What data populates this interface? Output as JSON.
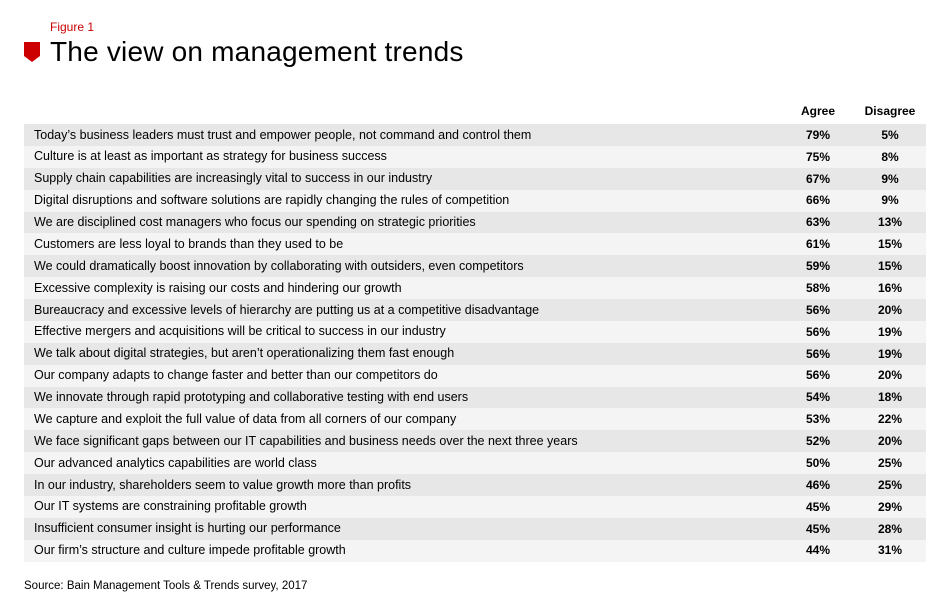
{
  "figure_label": "Figure 1",
  "title": "The view on management trends",
  "columns": {
    "agree": "Agree",
    "disagree": "Disagree"
  },
  "source": "Source: Bain Management Tools & Trends survey, 2017",
  "colors": {
    "accent": "#cc0000",
    "row_even": "#e7e7e7",
    "row_odd": "#f4f4f4",
    "text": "#000000",
    "background": "#ffffff"
  },
  "typography": {
    "title_fontsize_pt": 21,
    "title_weight": 300,
    "body_fontsize_pt": 9.5,
    "header_weight": 700
  },
  "table": {
    "type": "table",
    "column_widths_pct": [
      80,
      10,
      10
    ],
    "rows": [
      {
        "statement": "Today’s business leaders must trust and empower people, not command and control them",
        "agree": "79%",
        "disagree": "5%"
      },
      {
        "statement": "Culture is at least as important as strategy for business success",
        "agree": "75%",
        "disagree": "8%"
      },
      {
        "statement": "Supply chain capabilities are increasingly vital to success in our industry",
        "agree": "67%",
        "disagree": "9%"
      },
      {
        "statement": "Digital disruptions and software solutions are rapidly changing the rules of competition",
        "agree": "66%",
        "disagree": "9%"
      },
      {
        "statement": "We are disciplined cost managers who focus our spending on strategic priorities",
        "agree": "63%",
        "disagree": "13%"
      },
      {
        "statement": "Customers are less loyal to brands than they used to be",
        "agree": "61%",
        "disagree": "15%"
      },
      {
        "statement": "We could dramatically boost innovation by collaborating with outsiders, even competitors",
        "agree": "59%",
        "disagree": "15%"
      },
      {
        "statement": "Excessive complexity is raising our costs and hindering our growth",
        "agree": "58%",
        "disagree": "16%"
      },
      {
        "statement": "Bureaucracy and excessive levels of hierarchy are putting us at a competitive disadvantage",
        "agree": "56%",
        "disagree": "20%"
      },
      {
        "statement": "Effective mergers and acquisitions will be critical to success in our industry",
        "agree": "56%",
        "disagree": "19%"
      },
      {
        "statement": "We talk about digital strategies, but aren’t operationalizing them fast enough",
        "agree": "56%",
        "disagree": "19%"
      },
      {
        "statement": "Our company adapts to change faster and better than our competitors do",
        "agree": "56%",
        "disagree": "20%"
      },
      {
        "statement": "We innovate through rapid prototyping and collaborative testing with end users",
        "agree": "54%",
        "disagree": "18%"
      },
      {
        "statement": "We capture and exploit the full value of data from all corners of our company",
        "agree": "53%",
        "disagree": "22%"
      },
      {
        "statement": "We face significant gaps between our IT capabilities and business needs over the next three years",
        "agree": "52%",
        "disagree": "20%"
      },
      {
        "statement": "Our advanced analytics capabilities are world class",
        "agree": "50%",
        "disagree": "25%"
      },
      {
        "statement": "In our industry, shareholders seem to value growth more than profits",
        "agree": "46%",
        "disagree": "25%"
      },
      {
        "statement": "Our IT systems are constraining profitable growth",
        "agree": "45%",
        "disagree": "29%"
      },
      {
        "statement": "Insufficient consumer insight is hurting our performance",
        "agree": "45%",
        "disagree": "28%"
      },
      {
        "statement": "Our firm’s structure and culture impede profitable growth",
        "agree": "44%",
        "disagree": "31%"
      }
    ]
  }
}
